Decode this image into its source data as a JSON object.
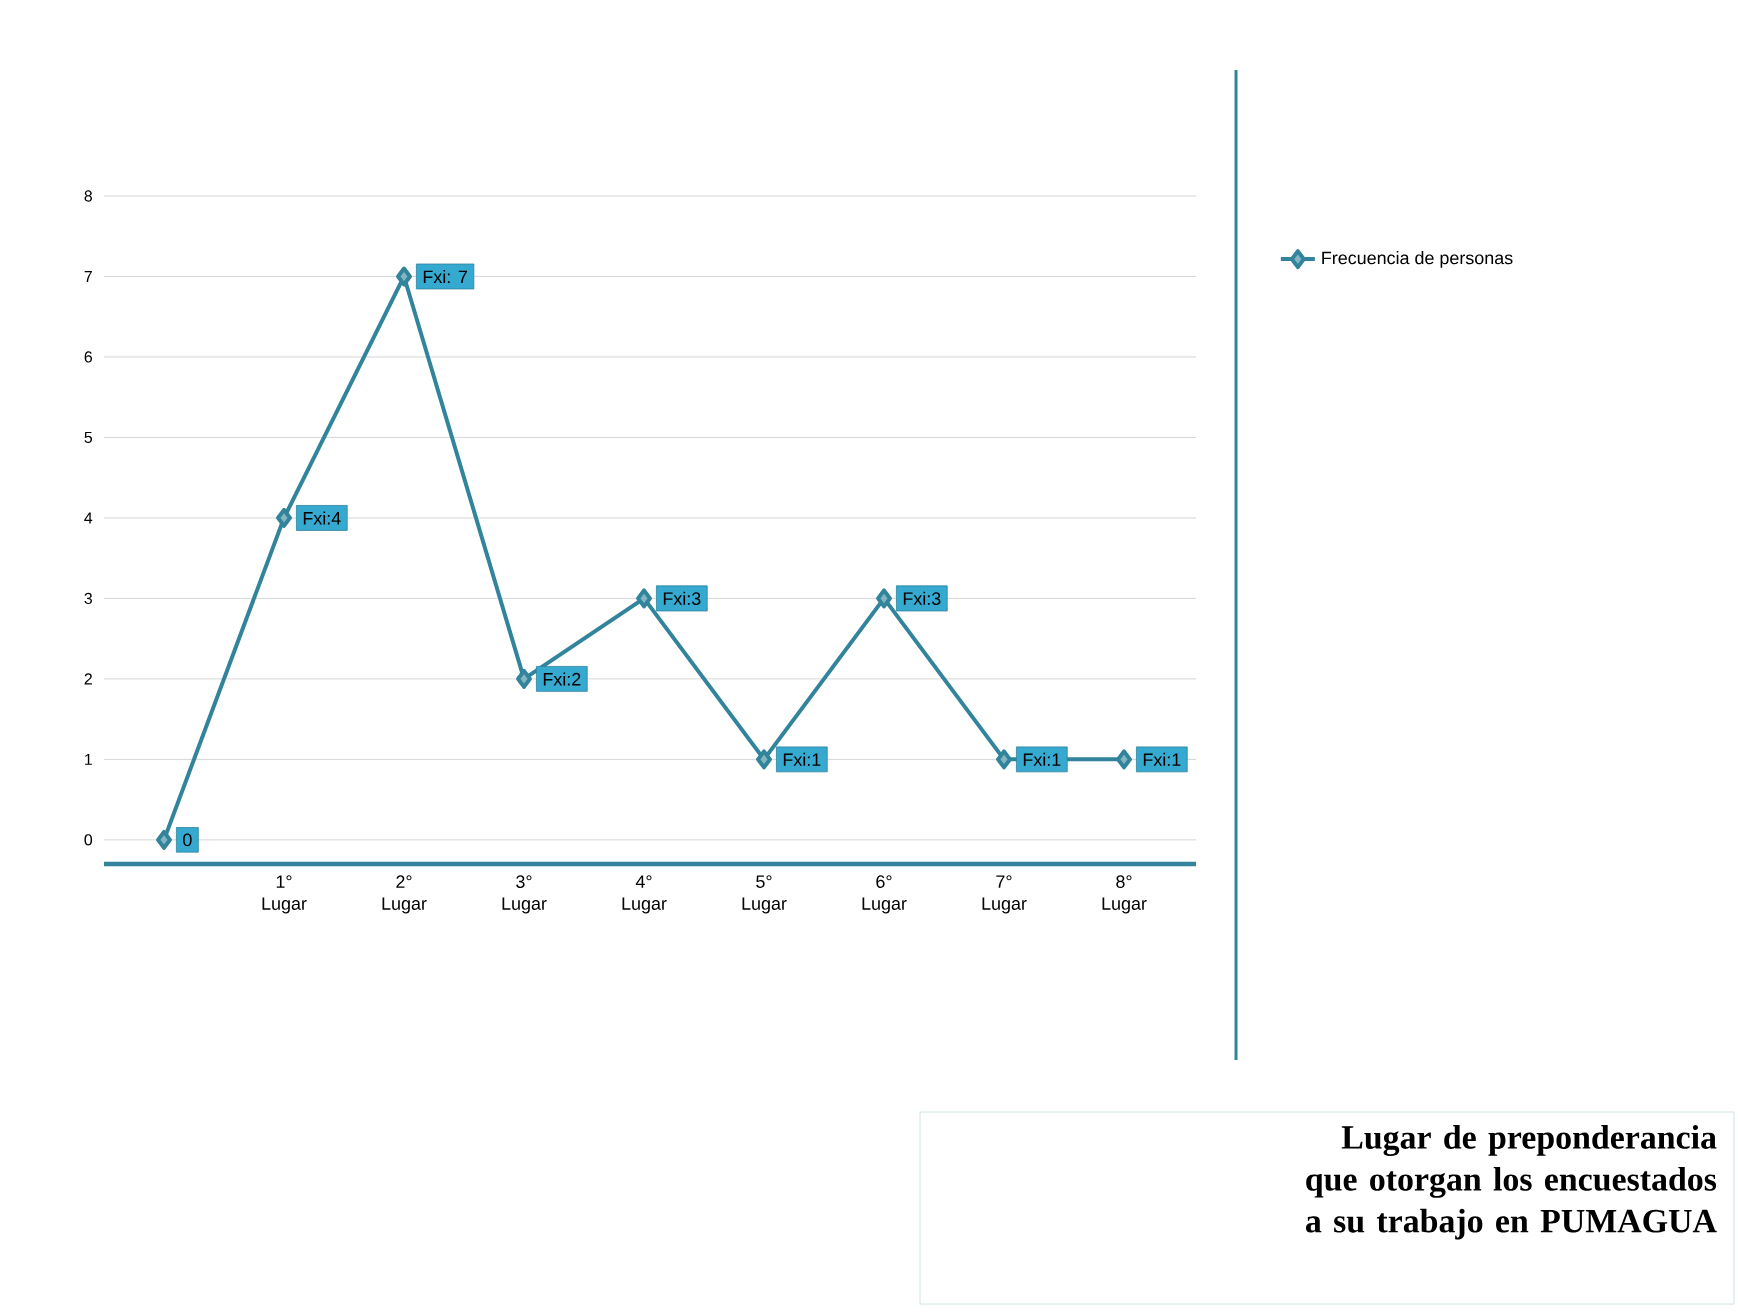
{
  "chart_data": {
    "type": "line",
    "title": "Lugar de preponderancia que otorgan los encuestados a su trabajo en PUMAGUA",
    "categories": [
      null,
      "1° Lugar",
      "2° Lugar",
      "3° Lugar",
      "4° Lugar",
      "5° Lugar",
      "6° Lugar",
      "7° Lugar",
      "8° Lugar"
    ],
    "series": [
      {
        "name": "Frecuencia de personas",
        "color": "#31849b",
        "values": [
          0,
          4,
          7,
          2,
          3,
          1,
          3,
          1,
          1
        ],
        "value_labels": [
          "0",
          "Fxi:4",
          "Fxi: 7",
          "Fxi:2",
          "Fxi:3",
          "Fxi:1",
          "Fxi:3",
          "Fxi:1",
          "Fxi:1"
        ]
      }
    ],
    "ylim": [
      -0.3,
      8
    ],
    "yticks": [
      0,
      1,
      2,
      3,
      4,
      5,
      6,
      7,
      8
    ],
    "grid": "y",
    "legend": "right",
    "marker": "diamond",
    "line_style": "solid"
  }
}
